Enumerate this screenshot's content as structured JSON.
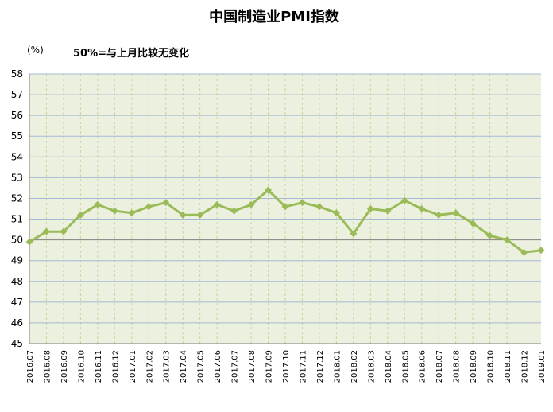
{
  "chart_data": {
    "type": "line",
    "title": "中国制造业PMI指数",
    "annotation": "50%=与上月比较无变化",
    "unit_label": "(%)",
    "xlabel": "",
    "ylabel": "",
    "ylim": [
      45,
      58
    ],
    "yticks": [
      45,
      46,
      47,
      48,
      49,
      50,
      51,
      52,
      53,
      54,
      55,
      56,
      57,
      58
    ],
    "grid": true,
    "legend": "none",
    "categories": [
      "2016.07",
      "2016.08",
      "2016.09",
      "2016.10",
      "2016.11",
      "2016.12",
      "2017.01",
      "2017.02",
      "2017.03",
      "2017.04",
      "2017.05",
      "2017.06",
      "2017.07",
      "2017.08",
      "2017.09",
      "2017.10",
      "2017.11",
      "2017.12",
      "2018.01",
      "2018.02",
      "2018.03",
      "2018.04",
      "2018.05",
      "2018.06",
      "2018.07",
      "2018.08",
      "2018.09",
      "2018.10",
      "2018.11",
      "2018.12",
      "2019.01"
    ],
    "series": [
      {
        "values": [
          49.9,
          50.4,
          50.4,
          51.2,
          51.7,
          51.4,
          51.3,
          51.6,
          51.8,
          51.2,
          51.2,
          51.7,
          51.4,
          51.7,
          52.4,
          51.6,
          51.8,
          51.6,
          51.3,
          50.3,
          51.5,
          51.4,
          51.9,
          51.5,
          51.2,
          51.3,
          50.8,
          50.2,
          50.0,
          49.4,
          49.5
        ]
      }
    ],
    "colors": {
      "line": "#9bbb59",
      "plot_bg": "#ebf1de",
      "grid_h": "#a6b8d6",
      "grid_v": "#c4d79b",
      "baseline": "#808080"
    }
  }
}
